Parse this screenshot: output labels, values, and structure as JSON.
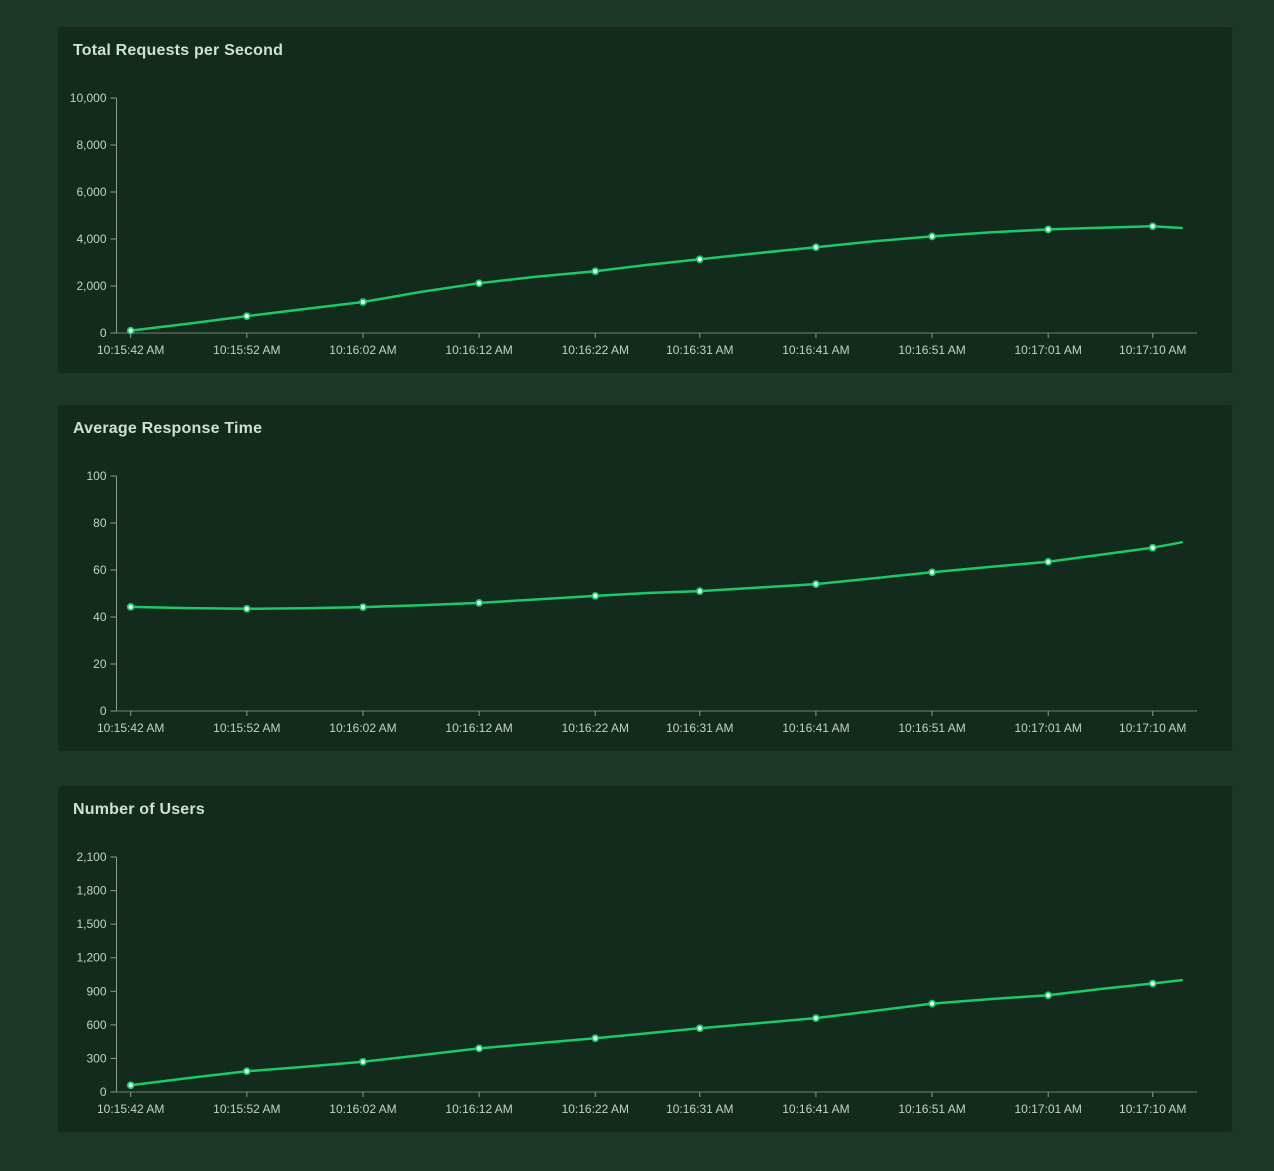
{
  "colors": {
    "page_bg": "#1b3727",
    "card_bg": "#132b1d",
    "accent_green": "#1bc96a",
    "marker_fill": "#f2fcf6",
    "title_color": "#cfe0d4",
    "axis_text": "#c3d2c8",
    "axis_line": "#8d9b90",
    "x_axis_line": "#71806f"
  },
  "chart_data": [
    {
      "type": "line",
      "title": "Total Requests per Second",
      "grid": false,
      "legend": null,
      "ylim": [
        0,
        10000
      ],
      "y_axis": {
        "max": 10000,
        "ticks": [
          {
            "v": 0,
            "label": "0"
          },
          {
            "v": 2000,
            "label": "2,000"
          },
          {
            "v": 4000,
            "label": "4,000"
          },
          {
            "v": 6000,
            "label": "6,000"
          },
          {
            "v": 8000,
            "label": "8,000"
          },
          {
            "v": 10000,
            "label": "10,000"
          }
        ]
      },
      "x_axis": {
        "labels": [
          "10:15:42 AM",
          "10:15:52 AM",
          "10:16:02 AM",
          "10:16:12 AM",
          "10:16:22 AM",
          "10:16:31 AM",
          "10:16:41 AM",
          "10:16:51 AM",
          "10:17:01 AM",
          "10:17:10 AM"
        ],
        "t": [
          0,
          10,
          20,
          30,
          40,
          49,
          59,
          69,
          79,
          88
        ]
      },
      "points": [
        [
          0,
          100,
          1
        ],
        [
          5,
          400,
          0
        ],
        [
          10,
          720,
          1
        ],
        [
          15,
          1020,
          0
        ],
        [
          20,
          1320,
          1
        ],
        [
          25,
          1750,
          0
        ],
        [
          30,
          2120,
          1
        ],
        [
          35,
          2400,
          0
        ],
        [
          40,
          2630,
          1
        ],
        [
          44.5,
          2900,
          0
        ],
        [
          49,
          3140,
          1
        ],
        [
          54,
          3400,
          0
        ],
        [
          59,
          3650,
          1
        ],
        [
          64,
          3900,
          0
        ],
        [
          69,
          4110,
          1
        ],
        [
          74,
          4280,
          0
        ],
        [
          79,
          4410,
          1
        ],
        [
          83.5,
          4480,
          0
        ],
        [
          88,
          4540,
          1
        ],
        [
          90.5,
          4470,
          0
        ]
      ]
    },
    {
      "type": "line",
      "title": "Average Response Time",
      "grid": false,
      "legend": null,
      "ylim": [
        0,
        100
      ],
      "y_axis": {
        "max": 100,
        "ticks": [
          {
            "v": 0,
            "label": "0"
          },
          {
            "v": 20,
            "label": "20"
          },
          {
            "v": 40,
            "label": "40"
          },
          {
            "v": 60,
            "label": "60"
          },
          {
            "v": 80,
            "label": "80"
          },
          {
            "v": 100,
            "label": "100"
          }
        ]
      },
      "x_axis": {
        "labels": [
          "10:15:42 AM",
          "10:15:52 AM",
          "10:16:02 AM",
          "10:16:12 AM",
          "10:16:22 AM",
          "10:16:31 AM",
          "10:16:41 AM",
          "10:16:51 AM",
          "10:17:01 AM",
          "10:17:10 AM"
        ],
        "t": [
          0,
          10,
          20,
          30,
          40,
          49,
          59,
          69,
          79,
          88
        ]
      },
      "points": [
        [
          0,
          44.3,
          1
        ],
        [
          5,
          43.8,
          0
        ],
        [
          10,
          43.5,
          1
        ],
        [
          15,
          43.7,
          0
        ],
        [
          20,
          44.2,
          1
        ],
        [
          25,
          45.0,
          0
        ],
        [
          30,
          46.0,
          1
        ],
        [
          35,
          47.5,
          0
        ],
        [
          40,
          49.0,
          1
        ],
        [
          44.5,
          50.2,
          0
        ],
        [
          49,
          51.0,
          1
        ],
        [
          54,
          52.5,
          0
        ],
        [
          59,
          54.0,
          1
        ],
        [
          64,
          56.5,
          0
        ],
        [
          69,
          59.0,
          1
        ],
        [
          74,
          61.3,
          0
        ],
        [
          79,
          63.5,
          1
        ],
        [
          83.5,
          66.5,
          0
        ],
        [
          88,
          69.5,
          1
        ],
        [
          90.5,
          71.8,
          0
        ]
      ]
    },
    {
      "type": "line",
      "title": "Number of Users",
      "grid": false,
      "legend": null,
      "ylim": [
        0,
        2100
      ],
      "y_axis": {
        "max": 2100,
        "ticks": [
          {
            "v": 0,
            "label": "0"
          },
          {
            "v": 300,
            "label": "300"
          },
          {
            "v": 600,
            "label": "600"
          },
          {
            "v": 900,
            "label": "900"
          },
          {
            "v": 1200,
            "label": "1,200"
          },
          {
            "v": 1500,
            "label": "1,500"
          },
          {
            "v": 1800,
            "label": "1,800"
          },
          {
            "v": 2100,
            "label": "2,100"
          }
        ]
      },
      "x_axis": {
        "labels": [
          "10:15:42 AM",
          "10:15:52 AM",
          "10:16:02 AM",
          "10:16:12 AM",
          "10:16:22 AM",
          "10:16:31 AM",
          "10:16:41 AM",
          "10:16:51 AM",
          "10:17:01 AM",
          "10:17:10 AM"
        ],
        "t": [
          0,
          10,
          20,
          30,
          40,
          49,
          59,
          69,
          79,
          88
        ]
      },
      "points": [
        [
          0,
          60,
          1
        ],
        [
          5,
          125,
          0
        ],
        [
          10,
          185,
          1
        ],
        [
          15,
          225,
          0
        ],
        [
          20,
          270,
          1
        ],
        [
          25,
          330,
          0
        ],
        [
          30,
          390,
          1
        ],
        [
          35,
          435,
          0
        ],
        [
          40,
          480,
          1
        ],
        [
          44.5,
          525,
          0
        ],
        [
          49,
          570,
          1
        ],
        [
          54,
          615,
          0
        ],
        [
          59,
          660,
          1
        ],
        [
          64,
          725,
          0
        ],
        [
          69,
          790,
          1
        ],
        [
          74,
          830,
          0
        ],
        [
          79,
          865,
          1
        ],
        [
          83.5,
          920,
          0
        ],
        [
          88,
          970,
          1
        ],
        [
          90.5,
          1000,
          0
        ]
      ]
    }
  ]
}
